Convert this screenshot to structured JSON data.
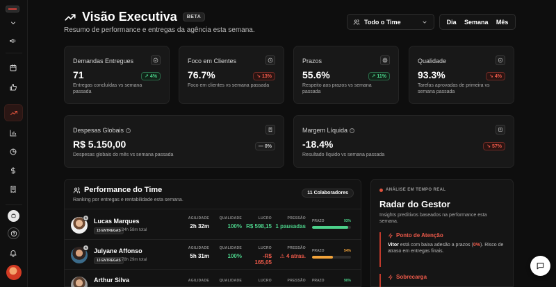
{
  "header": {
    "title": "Visão Executiva",
    "beta": "BETA",
    "subtitle": "Resumo de performance e entregas da agência esta semana.",
    "team_select": "Todo o Time",
    "periods": [
      "Dia",
      "Semana",
      "Mês"
    ]
  },
  "kpis": [
    {
      "label": "Demandas Entregues",
      "value": "71",
      "badge": "4%",
      "trend": "up",
      "desc": "Entregas concluídas vs semana passada",
      "icon": "check-circle-icon"
    },
    {
      "label": "Foco em Clientes",
      "value": "76.7%",
      "badge": "13%",
      "trend": "down",
      "desc": "Foco em clientes vs semana passada",
      "icon": "clock-icon"
    },
    {
      "label": "Prazos",
      "value": "55.6%",
      "badge": "11%",
      "trend": "up",
      "desc": "Respeito aos prazos vs semana passada",
      "icon": "target-icon"
    },
    {
      "label": "Qualidade",
      "value": "93.3%",
      "badge": "4%",
      "trend": "down",
      "desc": "Tarefas aprovadas de primeira vs semana passada",
      "icon": "shield-check-icon"
    }
  ],
  "finance": [
    {
      "label": "Despesas Globais",
      "value": "R$ 5.150,00",
      "badge": "0%",
      "trend": "neutral",
      "desc": "Despesas globais do mês vs semana passada",
      "icon": "receipt-icon"
    },
    {
      "label": "Margem Líquida",
      "value": "-18.4%",
      "badge": "57%",
      "trend": "down",
      "desc": "Resultado líquido vs semana passada",
      "icon": "document-icon"
    }
  ],
  "performance": {
    "title": "Performance do Time",
    "subtitle": "Ranking por entregas e rentabilidade esta semana.",
    "collaborators": "11 Colaboradores",
    "metric_labels": {
      "agility": "AGILIDADE",
      "quality": "QUALIDADE",
      "profit": "LUCRO",
      "pressure": "PRESSÃO",
      "deadline": "PRAZO"
    },
    "rows": [
      {
        "name": "Lucas Marques",
        "deliveries": "15 ENTREGAS",
        "total": "24h 58m total",
        "agility": "2h 32m",
        "quality": "100%",
        "profit": "R$ 598,15",
        "pressure": "1 pausadas",
        "deadline_pct": "93%",
        "deadline_value": 93,
        "color": "#4cd18a"
      },
      {
        "name": "Julyane Affonso",
        "deliveries": "13 ENTREGAS",
        "total": "78h 29m total",
        "agility": "5h 31m",
        "quality": "100%",
        "profit": "-R$ 165,05",
        "pressure": "4 atras.",
        "deadline_pct": "54%",
        "deadline_value": 54,
        "color": "#f2a33a"
      },
      {
        "name": "Arthur Silva",
        "deliveries": "",
        "total": "",
        "agility": "",
        "quality": "",
        "profit": "",
        "pressure": "",
        "deadline_pct": "90%",
        "deadline_value": 90,
        "color": "#4cd18a"
      }
    ]
  },
  "radar": {
    "live": "ANÁLISE EM TEMPO REAL",
    "title": "Radar do Gestor",
    "subtitle": "Insights preditivos baseados na performance esta semana.",
    "alerts": [
      {
        "title": "Ponto de Atenção",
        "who": "Vitor",
        "text_a": " está com baixa adesão a prazos (",
        "pct": "0%",
        "text_b": "). Risco de atraso em entregas finais."
      },
      {
        "title": "Sobrecarga",
        "who": "",
        "text_a": "",
        "pct": "",
        "text_b": ""
      }
    ]
  },
  "colors": {
    "accent": "#e0533d",
    "positive": "#4cd18a",
    "negative": "#ef5a4a",
    "warning": "#f2a33a"
  }
}
